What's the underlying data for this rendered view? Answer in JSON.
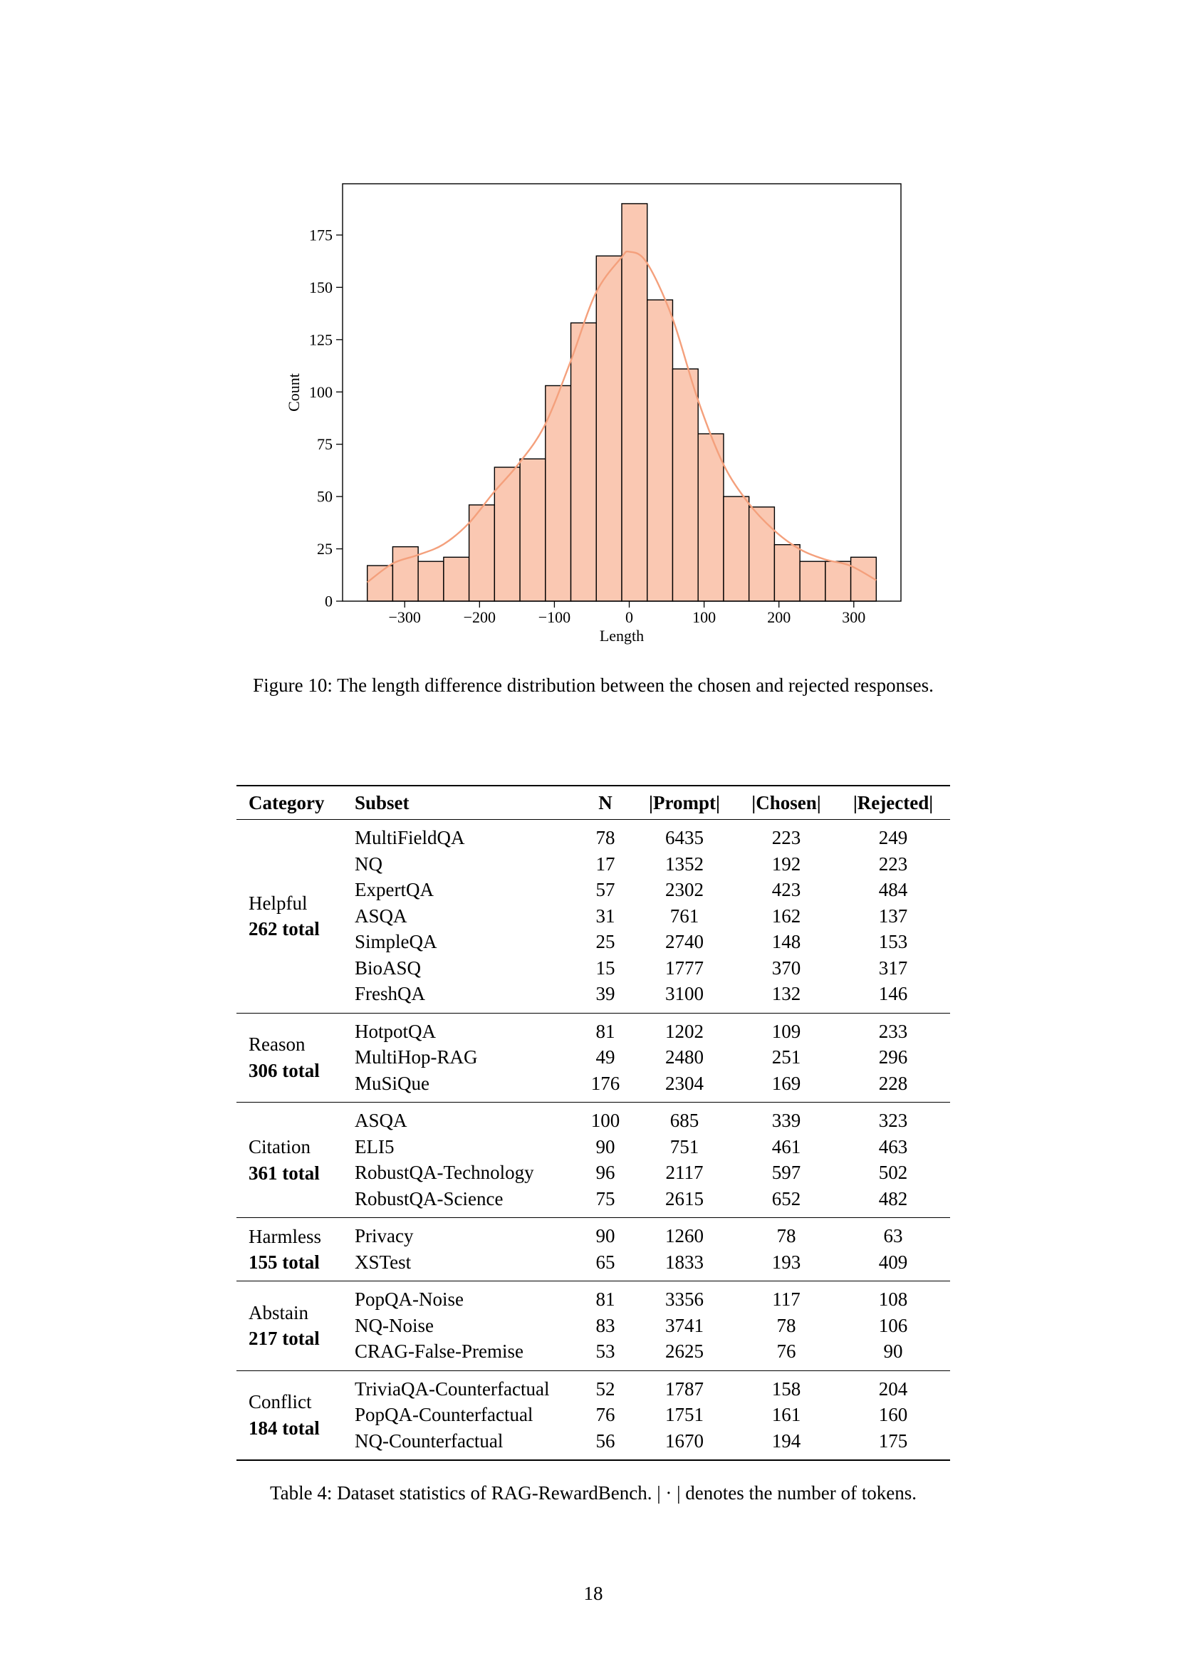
{
  "page": {
    "number": "18"
  },
  "figure": {
    "caption": "Figure 10: The length difference distribution between the chosen and rejected responses."
  },
  "chart_data": {
    "type": "bar",
    "xlabel": "Length",
    "ylabel": "Count",
    "xlim": [
      -383,
      363
    ],
    "ylim": [
      0,
      199.5
    ],
    "bin_edges": [
      -350,
      -316,
      -282,
      -248,
      -214,
      -180,
      -146,
      -112,
      -78,
      -44,
      -10,
      24,
      58,
      92,
      126,
      160,
      194,
      228,
      262,
      296,
      330
    ],
    "values": [
      17,
      26,
      19,
      21,
      46,
      64,
      68,
      103,
      133,
      165,
      190,
      144,
      111,
      80,
      50,
      45,
      27,
      19,
      19,
      21
    ],
    "kde": {
      "x": [
        -350,
        -316,
        -283,
        -249,
        -215,
        -181,
        -147,
        -113,
        -79,
        -45,
        -11,
        0,
        23,
        57,
        91,
        125,
        159,
        193,
        227,
        261,
        295,
        330
      ],
      "y": [
        9,
        18,
        22,
        27,
        37,
        52,
        66,
        84,
        114,
        147,
        164,
        167,
        162,
        136,
        97,
        66,
        47,
        34,
        25,
        20,
        17,
        10
      ]
    },
    "x_ticks": [
      -300,
      -200,
      -100,
      0,
      100,
      200,
      300
    ],
    "x_tick_labels": [
      "−300",
      "−200",
      "−100",
      "0",
      "100",
      "200",
      "300"
    ],
    "y_ticks": [
      0,
      25,
      50,
      75,
      100,
      125,
      150,
      175
    ],
    "y_tick_labels": [
      "0",
      "25",
      "50",
      "75",
      "100",
      "125",
      "150",
      "175"
    ],
    "grid": false,
    "legend": "none",
    "colors": {
      "bar_fill": "#fac8b2",
      "bar_edge": "#000000",
      "kde_line": "#f4a07c"
    }
  },
  "table": {
    "headers": [
      "Category",
      "Subset",
      "N",
      "|Prompt|",
      "|Chosen|",
      "|Rejected|"
    ],
    "groups": [
      {
        "category": "Helpful",
        "total": "262 total",
        "rows": [
          {
            "subset": "MultiFieldQA",
            "n": "78",
            "prompt": "6435",
            "chosen": "223",
            "rejected": "249"
          },
          {
            "subset": "NQ",
            "n": "17",
            "prompt": "1352",
            "chosen": "192",
            "rejected": "223"
          },
          {
            "subset": "ExpertQA",
            "n": "57",
            "prompt": "2302",
            "chosen": "423",
            "rejected": "484"
          },
          {
            "subset": "ASQA",
            "n": "31",
            "prompt": "761",
            "chosen": "162",
            "rejected": "137"
          },
          {
            "subset": "SimpleQA",
            "n": "25",
            "prompt": "2740",
            "chosen": "148",
            "rejected": "153"
          },
          {
            "subset": "BioASQ",
            "n": "15",
            "prompt": "1777",
            "chosen": "370",
            "rejected": "317"
          },
          {
            "subset": "FreshQA",
            "n": "39",
            "prompt": "3100",
            "chosen": "132",
            "rejected": "146"
          }
        ]
      },
      {
        "category": "Reason",
        "total": "306 total",
        "rows": [
          {
            "subset": "HotpotQA",
            "n": "81",
            "prompt": "1202",
            "chosen": "109",
            "rejected": "233"
          },
          {
            "subset": "MultiHop-RAG",
            "n": "49",
            "prompt": "2480",
            "chosen": "251",
            "rejected": "296"
          },
          {
            "subset": "MuSiQue",
            "n": "176",
            "prompt": "2304",
            "chosen": "169",
            "rejected": "228"
          }
        ]
      },
      {
        "category": "Citation",
        "total": "361 total",
        "rows": [
          {
            "subset": "ASQA",
            "n": "100",
            "prompt": "685",
            "chosen": "339",
            "rejected": "323"
          },
          {
            "subset": "ELI5",
            "n": "90",
            "prompt": "751",
            "chosen": "461",
            "rejected": "463"
          },
          {
            "subset": "RobustQA-Technology",
            "n": "96",
            "prompt": "2117",
            "chosen": "597",
            "rejected": "502"
          },
          {
            "subset": "RobustQA-Science",
            "n": "75",
            "prompt": "2615",
            "chosen": "652",
            "rejected": "482"
          }
        ]
      },
      {
        "category": "Harmless",
        "total": "155 total",
        "rows": [
          {
            "subset": "Privacy",
            "n": "90",
            "prompt": "1260",
            "chosen": "78",
            "rejected": "63"
          },
          {
            "subset": "XSTest",
            "n": "65",
            "prompt": "1833",
            "chosen": "193",
            "rejected": "409"
          }
        ]
      },
      {
        "category": "Abstain",
        "total": "217 total",
        "rows": [
          {
            "subset": "PopQA-Noise",
            "n": "81",
            "prompt": "3356",
            "chosen": "117",
            "rejected": "108"
          },
          {
            "subset": "NQ-Noise",
            "n": "83",
            "prompt": "3741",
            "chosen": "78",
            "rejected": "106"
          },
          {
            "subset": "CRAG-False-Premise",
            "n": "53",
            "prompt": "2625",
            "chosen": "76",
            "rejected": "90"
          }
        ]
      },
      {
        "category": "Conflict",
        "total": "184 total",
        "rows": [
          {
            "subset": "TriviaQA-Counterfactual",
            "n": "52",
            "prompt": "1787",
            "chosen": "158",
            "rejected": "204"
          },
          {
            "subset": "PopQA-Counterfactual",
            "n": "76",
            "prompt": "1751",
            "chosen": "161",
            "rejected": "160"
          },
          {
            "subset": "NQ-Counterfactual",
            "n": "56",
            "prompt": "1670",
            "chosen": "194",
            "rejected": "175"
          }
        ]
      }
    ],
    "caption": "Table 4: Dataset statistics of RAG-RewardBench. | · | denotes the number of tokens."
  }
}
